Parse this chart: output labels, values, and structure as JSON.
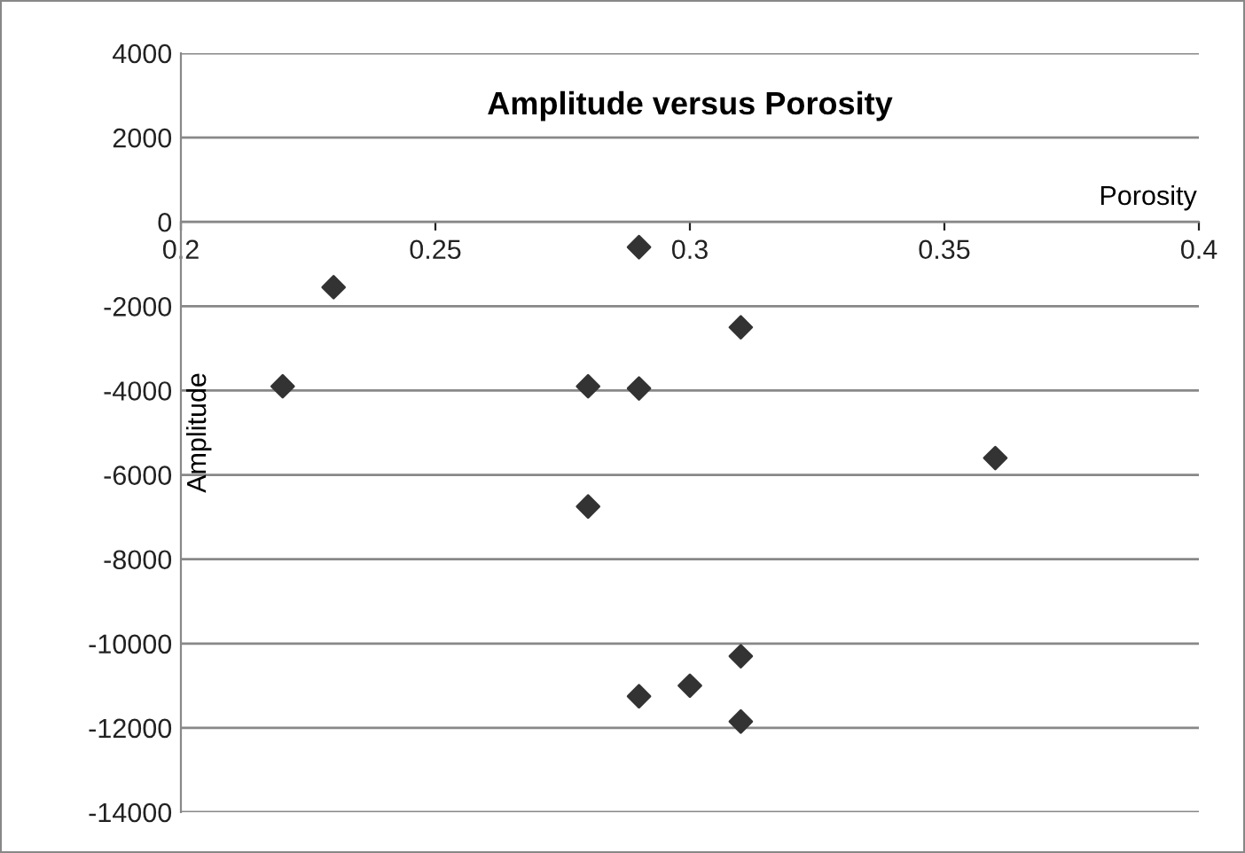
{
  "chart_data": {
    "type": "scatter",
    "title": "Amplitude versus Porosity",
    "xlabel": "Porosity",
    "ylabel": "Amplitude",
    "x": [
      0.22,
      0.23,
      0.28,
      0.28,
      0.29,
      0.29,
      0.31,
      0.36,
      0.31,
      0.3,
      0.29,
      0.31
    ],
    "series": [
      {
        "color": "#333333",
        "values": [
          -3900,
          -1550,
          -3900,
          -6750,
          -600,
          -3950,
          -2500,
          -5600,
          -10300,
          -11000,
          -11250,
          -11850
        ]
      }
    ],
    "xlim": [
      0.2,
      0.4
    ],
    "xticks": [
      0.2,
      0.25,
      0.3,
      0.35,
      0.4
    ],
    "ylim": [
      -14000,
      4000
    ],
    "yticks": [
      -14000,
      -12000,
      -10000,
      -8000,
      -6000,
      -4000,
      -2000,
      0,
      2000,
      4000
    ],
    "grid": "y",
    "marker": "diamond",
    "legend": false
  }
}
